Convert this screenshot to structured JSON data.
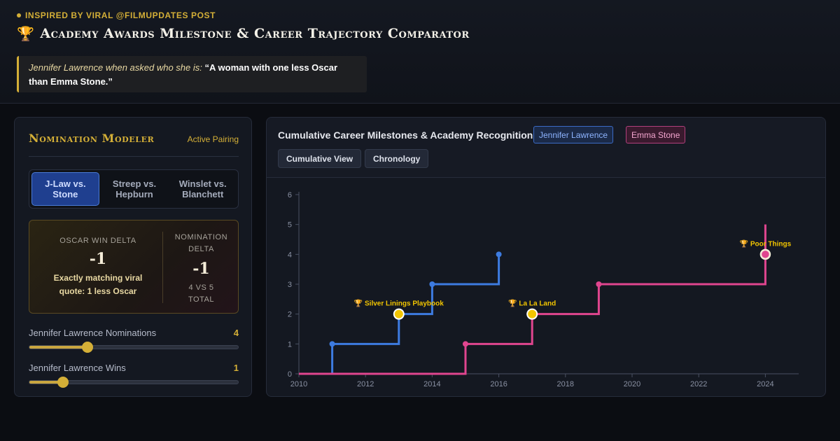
{
  "header": {
    "eyebrow": "Inspired by viral @FilmUpdates post",
    "title_icon": "trophy-icon",
    "title": "Academy Awards Milestone & Career Trajectory Comparator",
    "quote_lead": "Jennifer Lawrence when asked who she is:",
    "quote_text": "“A woman with one less Oscar than Emma Stone.”"
  },
  "colors": {
    "gold": "#d4af37",
    "jennifer_lawrence": "#3d7be0",
    "emma_stone": "#e0458f",
    "background": "#0b0d12"
  },
  "modeler": {
    "title": "Nomination Modeler",
    "badge": "Active Pairing",
    "pairings": [
      {
        "label": "J-Law vs. Stone",
        "active": true
      },
      {
        "label": "Streep vs. Hepburn",
        "active": false
      },
      {
        "label": "Winslet vs. Blanchett",
        "active": false
      }
    ],
    "win_delta_label": "Oscar Win Delta",
    "win_delta_value": "-1",
    "win_delta_note": "Exactly matching viral quote: 1 less Oscar",
    "nom_delta_label": "Nomination Delta",
    "nom_delta_value": "-1",
    "nom_delta_sub": "4 vs 5 total",
    "sliders": [
      {
        "label": "Jennifer Lawrence Nominations",
        "value": "4",
        "fraction": 0.28
      },
      {
        "label": "Jennifer Lawrence Wins",
        "value": "1",
        "fraction": 0.16
      }
    ]
  },
  "chart_panel": {
    "title": "Cumulative Career Milestones & Academy Recognition",
    "legend": [
      "Jennifer Lawrence",
      "Emma Stone"
    ],
    "views": [
      "Cumulative View",
      "Chronology"
    ]
  },
  "chart_data": {
    "type": "line",
    "step": true,
    "ylim": [
      0,
      6
    ],
    "yticks": [
      0,
      1,
      2,
      3,
      4,
      5,
      6
    ],
    "xlim": [
      2010,
      2025
    ],
    "xticks": [
      2010,
      2012,
      2014,
      2016,
      2018,
      2020,
      2022,
      2024
    ],
    "series": [
      {
        "name": "Jennifer Lawrence",
        "color": "#3d7be0",
        "start": [
          2010,
          0
        ],
        "points": [
          {
            "x": 2011,
            "y": 1
          },
          {
            "x": 2013,
            "y": 2,
            "win": true,
            "label": "🏆 Silver Linings Playbook"
          },
          {
            "x": 2014,
            "y": 3
          },
          {
            "x": 2016,
            "y": 4
          }
        ]
      },
      {
        "name": "Emma Stone",
        "color": "#e0458f",
        "start": [
          2010,
          0
        ],
        "points": [
          {
            "x": 2015,
            "y": 1
          },
          {
            "x": 2017,
            "y": 2,
            "win": true,
            "label": "🏆 La La Land"
          },
          {
            "x": 2019,
            "y": 3
          },
          {
            "x": 2024,
            "y": 4,
            "win": true,
            "label": "🏆 Poor Things"
          },
          {
            "x": 2024,
            "y": 5
          }
        ]
      }
    ]
  }
}
